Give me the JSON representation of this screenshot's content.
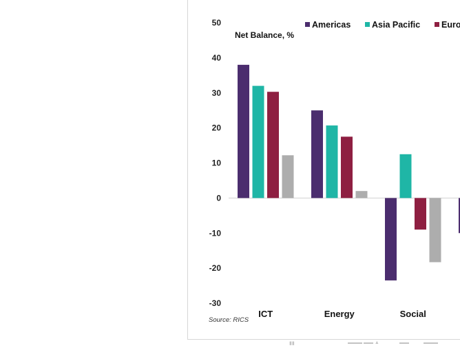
{
  "chart_data": {
    "type": "bar",
    "ylabel": "Net Balance, %",
    "source": "Source: RICS",
    "ylim": [
      -30,
      50
    ],
    "yticks": [
      50,
      40,
      30,
      20,
      10,
      0,
      -10,
      -20,
      -30
    ],
    "categories": [
      "ICT",
      "Energy",
      "Social",
      ""
    ],
    "legend_placement": "top",
    "series": [
      {
        "name": "Americas",
        "color": "#4b2d6e",
        "values": [
          38,
          25,
          -23.5,
          -10
        ]
      },
      {
        "name": "Asia Pacific",
        "color": "#1fb6a6",
        "values": [
          32,
          20.7,
          12.5,
          null
        ]
      },
      {
        "name": "Euro",
        "color": "#8e1f41",
        "values": [
          30.3,
          17.5,
          -9,
          null
        ]
      },
      {
        "name": "",
        "color": "#adadad",
        "values": [
          12.2,
          2,
          -18.3,
          null
        ]
      }
    ],
    "legend_labels": [
      "Americas",
      "Asia Pacific",
      "Euro"
    ],
    "grid": false
  }
}
